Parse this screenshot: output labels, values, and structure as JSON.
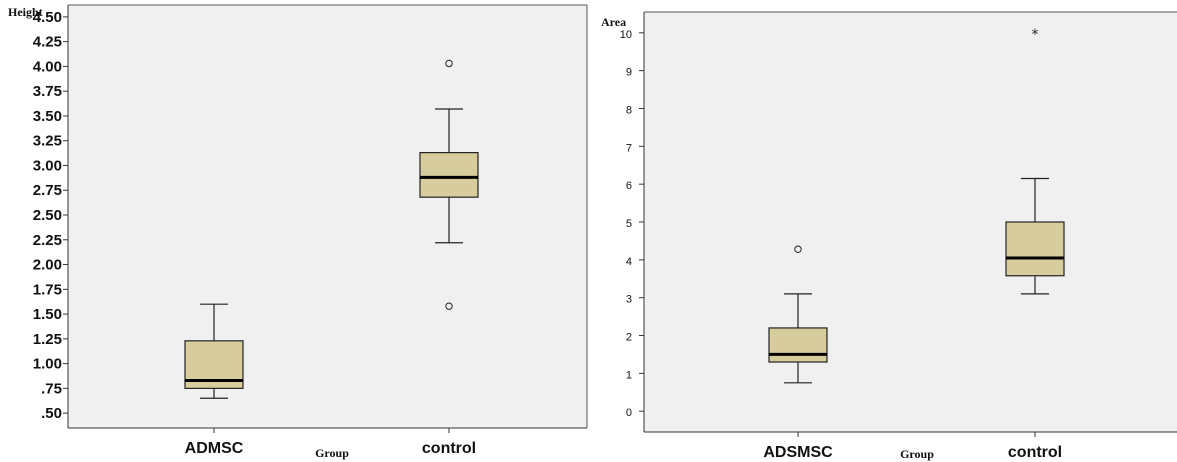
{
  "chart_data": [
    {
      "type": "boxplot",
      "ylabel": "Height",
      "xlabel": "Group",
      "ylim": [
        0.35,
        4.62
      ],
      "yticks": [
        0.5,
        0.75,
        1.0,
        1.25,
        1.5,
        1.75,
        2.0,
        2.25,
        2.5,
        2.75,
        3.0,
        3.25,
        3.5,
        3.75,
        4.0,
        4.25,
        4.5
      ],
      "ytick_labels": [
        ".50",
        ".75",
        "1.00",
        "1.25",
        "1.50",
        "1.75",
        "2.00",
        "2.25",
        "2.50",
        "2.75",
        "3.00",
        "3.25",
        "3.50",
        "3.75",
        "4.00",
        "4.25",
        "4.50"
      ],
      "categories": [
        "ADMSC",
        "control"
      ],
      "boxes": [
        {
          "name": "ADMSC",
          "whisker_low": 0.65,
          "q1": 0.75,
          "median": 0.83,
          "q3": 1.23,
          "whisker_high": 1.6,
          "outliers": [],
          "extremes": []
        },
        {
          "name": "control",
          "whisker_low": 2.22,
          "q1": 2.68,
          "median": 2.88,
          "q3": 3.13,
          "whisker_high": 3.57,
          "outliers": [
            4.03,
            1.58
          ],
          "extremes": []
        }
      ],
      "grid": false,
      "box_color": "#d6cc9c",
      "plot_background": "#f0f0f0"
    },
    {
      "type": "boxplot",
      "ylabel": "Area",
      "xlabel": "Group",
      "ylim": [
        -0.55,
        10.55
      ],
      "yticks": [
        0,
        1,
        2,
        3,
        4,
        5,
        6,
        7,
        8,
        9,
        10
      ],
      "ytick_labels": [
        "0",
        "1",
        "2",
        "3",
        "4",
        "5",
        "6",
        "7",
        "8",
        "9",
        "10"
      ],
      "categories": [
        "ADSMSC",
        "control"
      ],
      "boxes": [
        {
          "name": "ADSMSC",
          "whisker_low": 0.75,
          "q1": 1.3,
          "median": 1.5,
          "q3": 2.2,
          "whisker_high": 3.1,
          "outliers": [
            4.28
          ],
          "extremes": []
        },
        {
          "name": "control",
          "whisker_low": 3.1,
          "q1": 3.58,
          "median": 4.05,
          "q3": 5.0,
          "whisker_high": 6.15,
          "outliers": [],
          "extremes": [
            10.0
          ]
        }
      ],
      "grid": false,
      "box_color": "#d6cc9c",
      "plot_background": "#f0f0f0"
    }
  ]
}
